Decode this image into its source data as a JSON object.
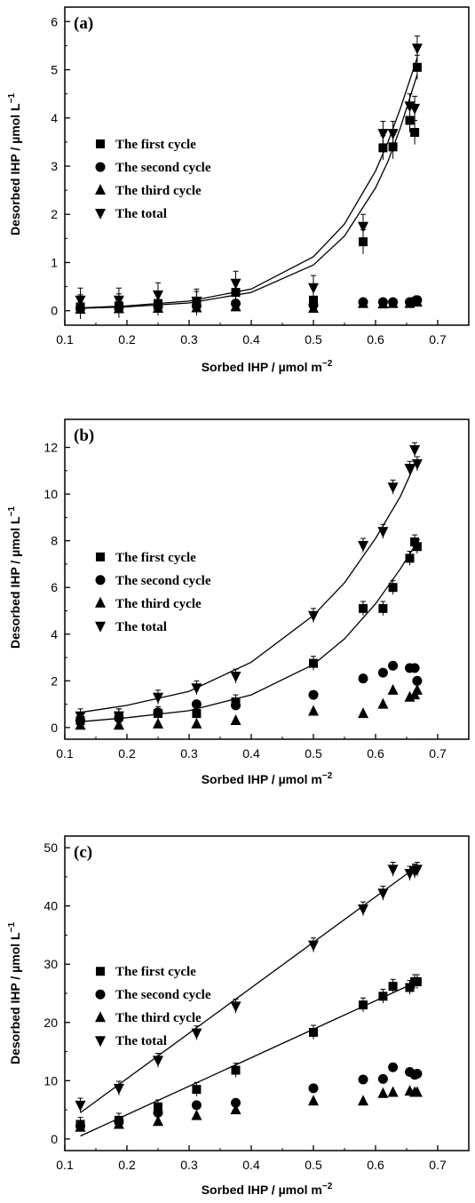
{
  "colors": {
    "ink": "#000000",
    "background": "#ffffff"
  },
  "chart_data": [
    {
      "type": "scatter",
      "panel_label": "(a)",
      "xlabel": "Sorbed IHP / µmol m",
      "xlabel_sup": "−2",
      "ylabel": "Desorbed IHP / µmol L",
      "ylabel_sup": "−1",
      "xlim": [
        0.1,
        0.75
      ],
      "ylim": [
        -0.3,
        6.3
      ],
      "xticks": [
        0.1,
        0.2,
        0.3,
        0.4,
        0.5,
        0.6,
        0.7
      ],
      "xtick_labels": [
        "0.1",
        "0.2",
        "0.3",
        "0.4",
        "0.5",
        "0.6",
        "0.7"
      ],
      "yticks": [
        0,
        1,
        2,
        3,
        4,
        5,
        6
      ],
      "ytick_labels": [
        "0",
        "1",
        "2",
        "3",
        "4",
        "5",
        "6"
      ],
      "legend_position": "center-left",
      "series": [
        {
          "name": "The first cycle",
          "marker": "square",
          "x": [
            0.125,
            0.187,
            0.25,
            0.312,
            0.375,
            0.5,
            0.58,
            0.612,
            0.628,
            0.655,
            0.663,
            0.667
          ],
          "y": [
            0.08,
            0.1,
            0.15,
            0.15,
            0.38,
            0.22,
            1.43,
            3.38,
            3.4,
            3.95,
            3.7,
            5.05
          ]
        },
        {
          "name": "The second cycle",
          "marker": "circle",
          "x": [
            0.125,
            0.187,
            0.25,
            0.312,
            0.375,
            0.5,
            0.58,
            0.612,
            0.628,
            0.655,
            0.663,
            0.667
          ],
          "y": [
            0.05,
            0.06,
            0.08,
            0.1,
            0.15,
            0.12,
            0.18,
            0.18,
            0.18,
            0.18,
            0.2,
            0.22
          ]
        },
        {
          "name": "The third cycle",
          "marker": "triangle-up",
          "x": [
            0.125,
            0.187,
            0.25,
            0.312,
            0.375,
            0.5,
            0.58,
            0.612,
            0.628,
            0.655,
            0.663,
            0.667
          ],
          "y": [
            0.03,
            0.04,
            0.05,
            0.06,
            0.08,
            0.05,
            0.15,
            0.14,
            0.15,
            0.15,
            0.2,
            0.18
          ]
        },
        {
          "name": "The total",
          "marker": "triangle-down",
          "x": [
            0.125,
            0.187,
            0.25,
            0.312,
            0.375,
            0.5,
            0.58,
            0.612,
            0.628,
            0.655,
            0.663,
            0.667
          ],
          "y": [
            0.22,
            0.22,
            0.33,
            0.2,
            0.57,
            0.48,
            1.75,
            3.68,
            3.68,
            4.25,
            4.2,
            5.45
          ]
        }
      ],
      "fits": [
        {
          "x": [
            0.125,
            0.2,
            0.3,
            0.4,
            0.5,
            0.55,
            0.6,
            0.62,
            0.64,
            0.667
          ],
          "y": [
            0.05,
            0.08,
            0.16,
            0.38,
            0.95,
            1.55,
            2.55,
            3.1,
            3.8,
            4.9
          ]
        },
        {
          "x": [
            0.125,
            0.2,
            0.3,
            0.4,
            0.5,
            0.55,
            0.6,
            0.62,
            0.64,
            0.667
          ],
          "y": [
            0.06,
            0.1,
            0.2,
            0.45,
            1.12,
            1.8,
            2.9,
            3.5,
            4.2,
            5.25
          ]
        }
      ],
      "error_bar": 0.25
    },
    {
      "type": "scatter",
      "panel_label": "(b)",
      "xlabel": "Sorbed IHP / µmol m",
      "xlabel_sup": "−2",
      "ylabel": "Desorbed IHP / µmol L",
      "ylabel_sup": "−1",
      "xlim": [
        0.1,
        0.75
      ],
      "ylim": [
        -0.5,
        13.2
      ],
      "xticks": [
        0.1,
        0.2,
        0.3,
        0.4,
        0.5,
        0.6,
        0.7
      ],
      "xtick_labels": [
        "0.1",
        "0.2",
        "0.3",
        "0.4",
        "0.5",
        "0.6",
        "0.7"
      ],
      "yticks": [
        0,
        2,
        4,
        6,
        8,
        10,
        12
      ],
      "ytick_labels": [
        "0",
        "2",
        "4",
        "6",
        "8",
        "10",
        "12"
      ],
      "legend_position": "center-left",
      "series": [
        {
          "name": "The first cycle",
          "marker": "square",
          "x": [
            0.125,
            0.187,
            0.25,
            0.312,
            0.375,
            0.5,
            0.58,
            0.612,
            0.628,
            0.655,
            0.663,
            0.667
          ],
          "y": [
            0.3,
            0.5,
            0.6,
            0.6,
            1.1,
            2.75,
            5.1,
            5.1,
            6.0,
            7.25,
            7.95,
            7.75
          ]
        },
        {
          "name": "The second cycle",
          "marker": "circle",
          "x": [
            0.125,
            0.187,
            0.25,
            0.312,
            0.375,
            0.5,
            0.58,
            0.612,
            0.628,
            0.655,
            0.663,
            0.667
          ],
          "y": [
            0.3,
            0.4,
            0.65,
            1.0,
            0.95,
            1.4,
            2.1,
            2.35,
            2.65,
            2.55,
            2.55,
            2.0
          ]
        },
        {
          "name": "The third cycle",
          "marker": "triangle-up",
          "x": [
            0.125,
            0.187,
            0.25,
            0.312,
            0.375,
            0.5,
            0.58,
            0.612,
            0.628,
            0.655,
            0.663,
            0.667
          ],
          "y": [
            0.1,
            0.1,
            0.15,
            0.15,
            0.3,
            0.7,
            0.6,
            1.0,
            1.6,
            1.3,
            1.4,
            1.6
          ]
        },
        {
          "name": "The total",
          "marker": "triangle-down",
          "x": [
            0.125,
            0.187,
            0.25,
            0.312,
            0.375,
            0.5,
            0.58,
            0.612,
            0.628,
            0.655,
            0.663,
            0.667
          ],
          "y": [
            0.5,
            0.5,
            1.3,
            1.7,
            2.2,
            4.8,
            7.8,
            8.4,
            10.3,
            11.1,
            11.9,
            11.3
          ]
        }
      ],
      "fits": [
        {
          "x": [
            0.125,
            0.2,
            0.3,
            0.4,
            0.5,
            0.55,
            0.6,
            0.64,
            0.667
          ],
          "y": [
            0.25,
            0.42,
            0.72,
            1.4,
            2.7,
            3.8,
            5.3,
            6.8,
            7.95
          ]
        },
        {
          "x": [
            0.125,
            0.2,
            0.3,
            0.4,
            0.5,
            0.55,
            0.6,
            0.64,
            0.667
          ],
          "y": [
            0.65,
            0.95,
            1.55,
            2.8,
            4.8,
            6.2,
            8.1,
            9.9,
            11.5
          ]
        }
      ],
      "error_bar": 0.3
    },
    {
      "type": "scatter",
      "panel_label": "(c)",
      "xlabel": "Sorbed IHP / µmol m",
      "xlabel_sup": "−2",
      "ylabel": "Desorbed IHP / µmol L",
      "ylabel_sup": "−1",
      "xlim": [
        0.1,
        0.75
      ],
      "ylim": [
        -2,
        52
      ],
      "xticks": [
        0.1,
        0.2,
        0.3,
        0.4,
        0.5,
        0.6,
        0.7
      ],
      "xtick_labels": [
        "0.1",
        "0.2",
        "0.3",
        "0.4",
        "0.5",
        "0.6",
        "0.7"
      ],
      "yticks": [
        0,
        10,
        20,
        30,
        40,
        50
      ],
      "ytick_labels": [
        "0",
        "10",
        "20",
        "30",
        "40",
        "50"
      ],
      "legend_position": "center-left",
      "series": [
        {
          "name": "The first cycle",
          "marker": "square",
          "x": [
            0.125,
            0.187,
            0.25,
            0.312,
            0.375,
            0.5,
            0.58,
            0.612,
            0.628,
            0.655,
            0.663,
            0.667
          ],
          "y": [
            2.5,
            3.2,
            5.5,
            8.5,
            11.8,
            18.3,
            23.0,
            24.5,
            26.2,
            26.0,
            27.0,
            27.0
          ]
        },
        {
          "name": "The second cycle",
          "marker": "circle",
          "x": [
            0.125,
            0.187,
            0.25,
            0.312,
            0.375,
            0.5,
            0.58,
            0.612,
            0.628,
            0.655,
            0.663,
            0.667
          ],
          "y": [
            2.2,
            3.0,
            4.5,
            5.8,
            6.2,
            8.7,
            10.2,
            10.3,
            12.3,
            11.5,
            11.0,
            11.2
          ]
        },
        {
          "name": "The third cycle",
          "marker": "triangle-up",
          "x": [
            0.125,
            0.187,
            0.25,
            0.312,
            0.375,
            0.5,
            0.58,
            0.612,
            0.628,
            0.655,
            0.663,
            0.667
          ],
          "y": [
            2.0,
            2.5,
            3.0,
            4.0,
            5.0,
            6.5,
            6.5,
            7.8,
            8.0,
            8.2,
            8.0,
            8.0
          ]
        },
        {
          "name": "The total",
          "marker": "triangle-down",
          "x": [
            0.125,
            0.187,
            0.25,
            0.312,
            0.375,
            0.5,
            0.58,
            0.612,
            0.628,
            0.655,
            0.663,
            0.667
          ],
          "y": [
            5.8,
            8.7,
            13.5,
            18.2,
            22.8,
            33.3,
            39.5,
            42.2,
            46.3,
            45.6,
            46.0,
            46.3
          ]
        }
      ],
      "fits": [
        {
          "x": [
            0.125,
            0.667
          ],
          "y": [
            0.5,
            27.0
          ]
        },
        {
          "x": [
            0.125,
            0.667
          ],
          "y": [
            4.5,
            46.8
          ]
        }
      ],
      "error_bar": 1.2
    }
  ]
}
